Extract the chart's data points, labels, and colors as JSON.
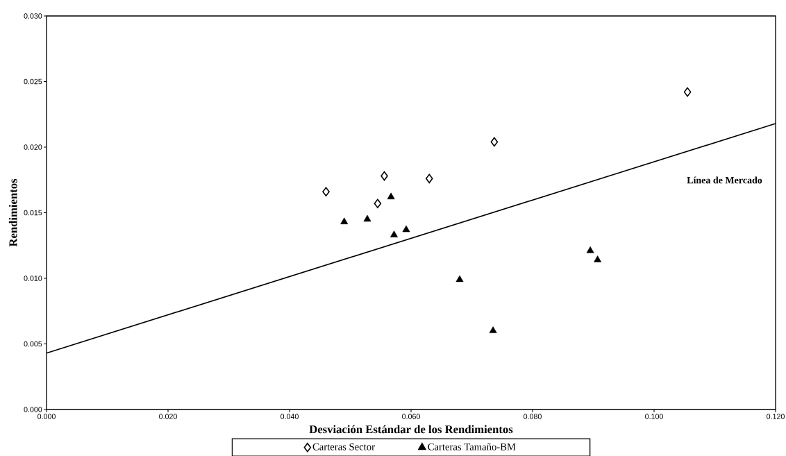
{
  "chart_data": {
    "type": "scatter",
    "xlabel": "Desviación Estándar de los Rendimientos",
    "ylabel": "Rendimientos",
    "xlim": [
      0,
      0.12
    ],
    "ylim": [
      0,
      0.03
    ],
    "xticks": [
      {
        "value": 0,
        "label": "0.000"
      },
      {
        "value": 0.02,
        "label": "0.020"
      },
      {
        "value": 0.04,
        "label": "0.040"
      },
      {
        "value": 0.06,
        "label": "0.060"
      },
      {
        "value": 0.08,
        "label": "0.080"
      },
      {
        "value": 0.1,
        "label": "0.100"
      },
      {
        "value": 0.12,
        "label": "0.120"
      }
    ],
    "yticks": [
      {
        "value": 0,
        "label": "0.000"
      },
      {
        "value": 0.005,
        "label": "0.005"
      },
      {
        "value": 0.01,
        "label": "0.010"
      },
      {
        "value": 0.015,
        "label": "0.015"
      },
      {
        "value": 0.02,
        "label": "0.020"
      },
      {
        "value": 0.025,
        "label": "0.025"
      },
      {
        "value": 0.03,
        "label": "0.030"
      }
    ],
    "grid": false,
    "legend": "bottom",
    "annotations": [
      "Línea de Mercado"
    ],
    "series": [
      {
        "type": "line",
        "color": "#000000",
        "marker": "none",
        "x": [
          0,
          0.12
        ],
        "values": [
          0.0043,
          0.0218
        ]
      },
      {
        "name": "Carteras Sector",
        "color": "#000000",
        "marker": "diamond",
        "x": [
          0.046,
          0.0545,
          0.0556,
          0.063,
          0.0737,
          0.1055
        ],
        "values": [
          0.0166,
          0.0157,
          0.0178,
          0.0176,
          0.0204,
          0.0242
        ]
      },
      {
        "name": "Carteras Tamaño-BM",
        "color": "#000000",
        "marker": "triangle",
        "x": [
          0.049,
          0.0528,
          0.0567,
          0.0572,
          0.0592,
          0.068,
          0.0735,
          0.0895,
          0.0907
        ],
        "values": [
          0.0143,
          0.0145,
          0.0162,
          0.0133,
          0.0137,
          0.0099,
          0.006,
          0.0121,
          0.0114
        ]
      }
    ]
  }
}
